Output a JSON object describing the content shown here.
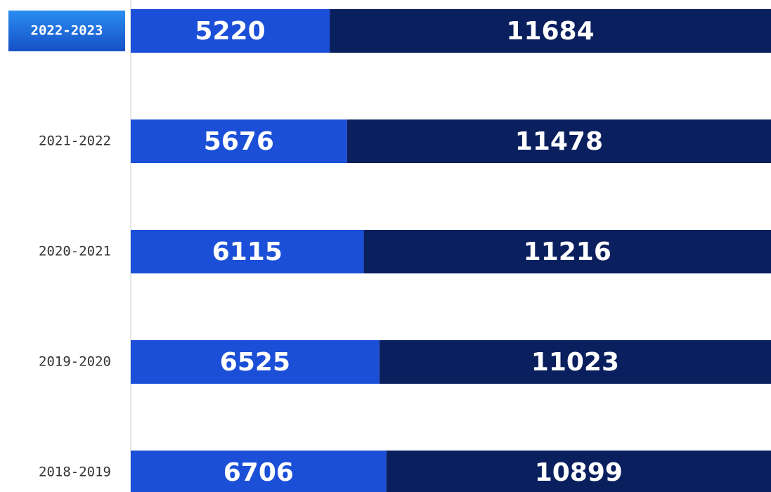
{
  "chart_data": {
    "type": "stacked-barh",
    "categories": [
      "2022-2023",
      "2021-2022",
      "2020-2021",
      "2019-2020",
      "2018-2019"
    ],
    "series": [
      {
        "color": "#1b4fd8",
        "values": [
          5220,
          5676,
          6115,
          6525,
          6706
        ]
      },
      {
        "color": "#0a1f5e",
        "values": [
          11684,
          11478,
          11216,
          11023,
          10899
        ]
      }
    ],
    "xlim": [
      0,
      16800
    ],
    "highlight_index": 0,
    "highlight_color": "#1e6fe0"
  }
}
